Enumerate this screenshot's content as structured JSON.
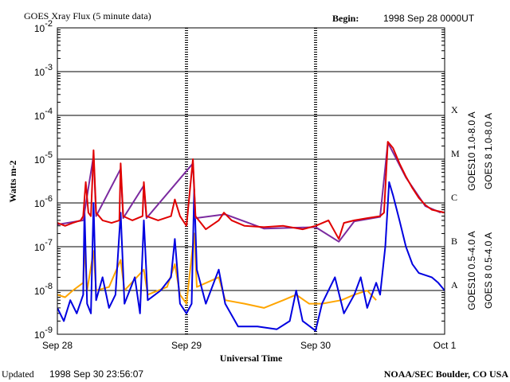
{
  "chart_data": {
    "type": "line",
    "title": "GOES Xray Flux (5 minute data)",
    "begin_label": "Begin:",
    "begin_value": "1998 Sep 28 0000UT",
    "xlabel": "Universal Time",
    "ylabel": "Watts m-2",
    "updated_label": "Updated",
    "updated_value": "1998 Sep 30 23:56:07",
    "credit": "NOAA/SEC Boulder, CO USA",
    "log_y": true,
    "grid": true,
    "xlim": [
      0,
      3
    ],
    "xticks": [
      {
        "value": 0,
        "label": "Sep 28"
      },
      {
        "value": 1,
        "label": "Sep 29"
      },
      {
        "value": 2,
        "label": "Sep 30"
      },
      {
        "value": 3,
        "label": "Oct 1"
      }
    ],
    "ylim": [
      1e-09,
      0.01
    ],
    "yticks": [
      {
        "value": 0.01,
        "label": "10-2"
      },
      {
        "value": 0.001,
        "label": "10-3"
      },
      {
        "value": 0.0001,
        "label": "10-4"
      },
      {
        "value": 1e-05,
        "label": "10-5"
      },
      {
        "value": 1e-06,
        "label": "10-6"
      },
      {
        "value": 1e-07,
        "label": "10-7"
      },
      {
        "value": 1e-08,
        "label": "10-8"
      },
      {
        "value": 1e-09,
        "label": "10-9"
      }
    ],
    "class_labels": [
      {
        "value": 0.0001,
        "label": "X"
      },
      {
        "value": 1e-05,
        "label": "M"
      },
      {
        "value": 1e-06,
        "label": "C"
      },
      {
        "value": 1e-07,
        "label": "B"
      },
      {
        "value": 1e-08,
        "label": "A"
      }
    ],
    "series": [
      {
        "name": "GOES10 1.0-8.0 A",
        "color": "#7b2a9f",
        "x": [
          0,
          0.2,
          0.28,
          0.3,
          0.49,
          0.51,
          0.67,
          0.69,
          1.05,
          1.07,
          1.3,
          1.6,
          2.0,
          2.18,
          2.3,
          2.5,
          2.56,
          2.7,
          2.85,
          2.97
        ],
        "values": [
          3.2e-07,
          4e-07,
          1.2e-05,
          5e-07,
          6e-06,
          4.5e-07,
          2.5e-06,
          4.5e-07,
          8e-06,
          4.5e-07,
          5.5e-07,
          2.6e-07,
          2.8e-07,
          1.3e-07,
          3.8e-07,
          4.8e-07,
          2.4e-05,
          3.8e-06,
          8.5e-07,
          6e-07
        ]
      },
      {
        "name": "GOES 8 1.0-8.0 A",
        "color": "#e00000",
        "x": [
          0,
          0.06,
          0.12,
          0.18,
          0.2,
          0.22,
          0.24,
          0.26,
          0.28,
          0.3,
          0.35,
          0.42,
          0.48,
          0.49,
          0.51,
          0.58,
          0.66,
          0.67,
          0.69,
          0.78,
          0.88,
          0.91,
          0.95,
          1.0,
          1.05,
          1.07,
          1.15,
          1.25,
          1.29,
          1.35,
          1.45,
          1.6,
          1.75,
          1.9,
          2.0,
          2.1,
          2.18,
          2.22,
          2.3,
          2.4,
          2.5,
          2.53,
          2.56,
          2.6,
          2.65,
          2.7,
          2.75,
          2.8,
          2.85,
          2.9,
          3.0
        ],
        "values": [
          3.5e-07,
          3e-07,
          3.5e-07,
          4e-07,
          5e-07,
          3e-06,
          6e-07,
          5e-07,
          1.6e-05,
          6e-07,
          4e-07,
          3.5e-07,
          4e-07,
          8e-06,
          5e-07,
          4e-07,
          5e-07,
          3e-06,
          5e-07,
          4e-07,
          5e-07,
          1.2e-06,
          5e-07,
          3e-07,
          1e-05,
          5e-07,
          2.5e-07,
          4e-07,
          6e-07,
          4e-07,
          3e-07,
          2.8e-07,
          3e-07,
          2.5e-07,
          3e-07,
          4e-07,
          1.5e-07,
          3.5e-07,
          4e-07,
          4.5e-07,
          5e-07,
          6e-07,
          2.5e-05,
          1.8e-05,
          8e-06,
          4e-06,
          2.2e-06,
          1.3e-06,
          9e-07,
          7e-07,
          6e-07
        ]
      },
      {
        "name": "GOES10 0.5-4.0 A",
        "color": "#ffa500",
        "x": [
          0,
          0.06,
          0.12,
          0.2,
          0.21,
          0.23,
          0.28,
          0.3,
          0.4,
          0.49,
          0.52,
          0.67,
          0.7,
          0.85,
          0.91,
          0.95,
          1.0,
          1.06,
          1.08,
          1.25,
          1.3,
          1.45,
          1.6,
          1.75,
          1.85,
          1.95,
          2.05,
          2.2,
          2.3,
          2.4,
          2.47
        ],
        "values": [
          8e-09,
          7e-09,
          1e-08,
          1.5e-08,
          1e-07,
          1e-08,
          8e-08,
          1e-08,
          1.2e-08,
          5e-08,
          1e-08,
          3e-08,
          8e-09,
          1.2e-08,
          4e-08,
          8e-09,
          5e-09,
          2e-07,
          1.2e-08,
          2e-08,
          6e-09,
          5e-09,
          4e-09,
          6e-09,
          8e-09,
          5e-09,
          5e-09,
          6e-09,
          8e-09,
          1e-08,
          6e-09
        ]
      },
      {
        "name": "GOES 8 0.5-4.0 A",
        "color": "#0000e0",
        "x": [
          0,
          0.05,
          0.1,
          0.15,
          0.2,
          0.21,
          0.23,
          0.26,
          0.28,
          0.3,
          0.35,
          0.4,
          0.45,
          0.49,
          0.52,
          0.6,
          0.64,
          0.67,
          0.7,
          0.8,
          0.88,
          0.91,
          0.95,
          1.0,
          1.04,
          1.06,
          1.08,
          1.15,
          1.25,
          1.3,
          1.4,
          1.55,
          1.7,
          1.8,
          1.85,
          1.9,
          2.0,
          2.05,
          2.15,
          2.22,
          2.3,
          2.35,
          2.4,
          2.47,
          2.5,
          2.54,
          2.57,
          2.6,
          2.65,
          2.7,
          2.75,
          2.8,
          2.9,
          2.95,
          3.0
        ],
        "values": [
          4e-09,
          2e-09,
          6e-09,
          3e-09,
          8e-09,
          7e-07,
          5e-09,
          3e-09,
          1e-06,
          6e-09,
          2e-08,
          4e-09,
          8e-09,
          6e-07,
          5e-09,
          2e-08,
          3e-09,
          4e-07,
          6e-09,
          1e-08,
          2e-08,
          1.5e-07,
          5e-09,
          3e-09,
          5e-09,
          2e-06,
          3e-08,
          5e-09,
          3e-08,
          5e-09,
          1.5e-09,
          1.5e-09,
          1.3e-09,
          2e-09,
          1e-08,
          2e-09,
          1.2e-09,
          5e-09,
          2e-08,
          3e-09,
          8e-09,
          2e-08,
          4e-09,
          1.5e-08,
          8e-09,
          1e-07,
          3e-06,
          1.5e-06,
          4e-07,
          1e-07,
          4e-08,
          2.5e-08,
          2e-08,
          1.5e-08,
          1e-08
        ]
      }
    ]
  }
}
